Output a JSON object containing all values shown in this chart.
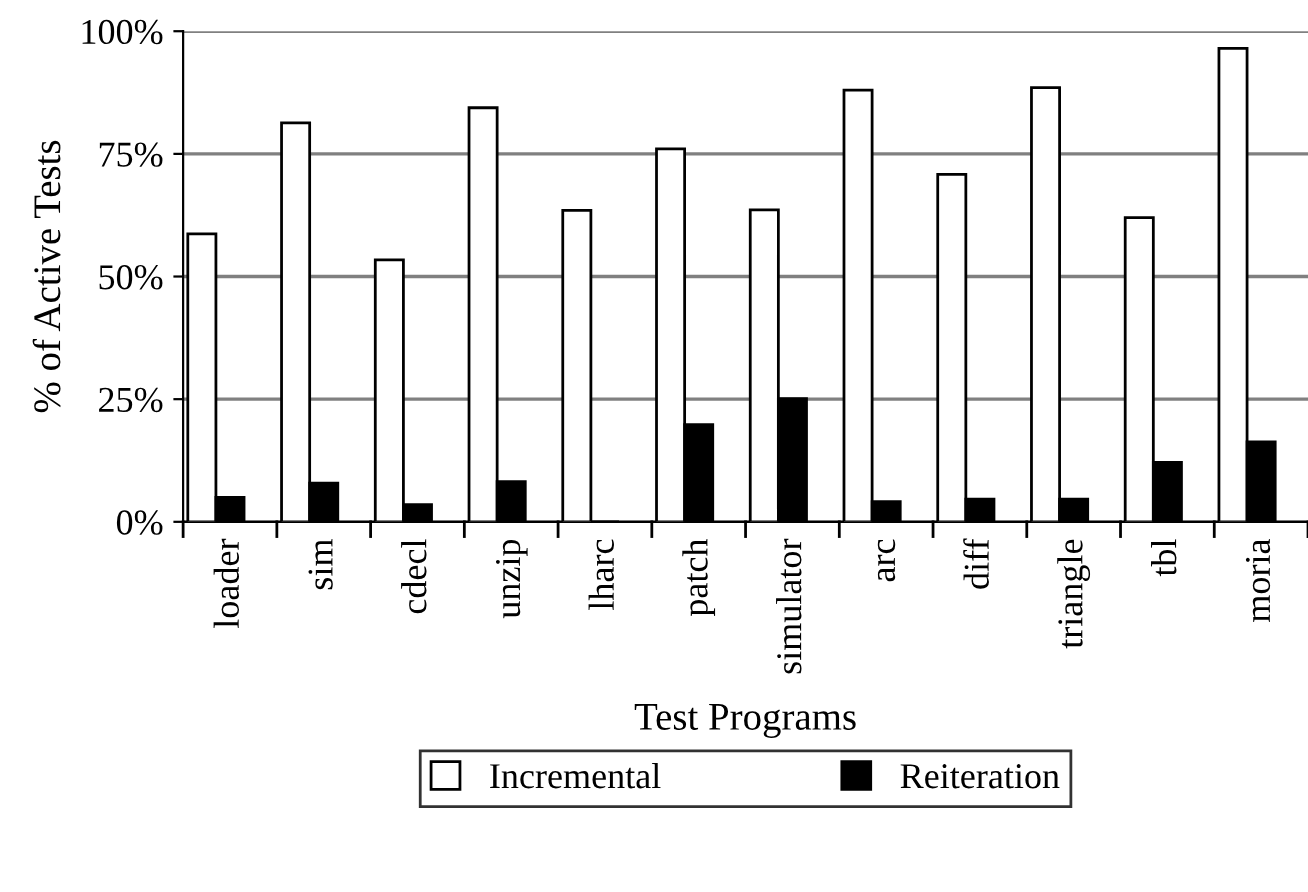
{
  "chart_data": {
    "type": "bar",
    "xlabel": "Test Programs",
    "ylabel": "% of Active Tests",
    "categories": [
      "loader",
      "sim",
      "cdecl",
      "unzip",
      "lharc",
      "patch",
      "simulator",
      "arc",
      "diff",
      "triangle",
      "tbl",
      "moria"
    ],
    "series": [
      {
        "name": "Incremental",
        "color": "#ffffff",
        "values": [
          58.7,
          81.3,
          53.4,
          84.4,
          63.5,
          76.0,
          63.6,
          88.0,
          70.8,
          88.5,
          62.0,
          96.5
        ]
      },
      {
        "name": "Reiteration",
        "color": "#000000",
        "values": [
          5.0,
          7.9,
          3.5,
          8.2,
          0,
          19.8,
          25.1,
          4.1,
          4.6,
          4.6,
          12.1,
          16.3
        ]
      }
    ],
    "ylim": [
      0,
      100
    ],
    "yticks": [
      {
        "value": 0,
        "label": "0%"
      },
      {
        "value": 25,
        "label": "25%"
      },
      {
        "value": 50,
        "label": "50%"
      },
      {
        "value": 75,
        "label": "75%"
      },
      {
        "value": 100,
        "label": "100%"
      }
    ],
    "grid": "y",
    "legend": "bottom"
  }
}
